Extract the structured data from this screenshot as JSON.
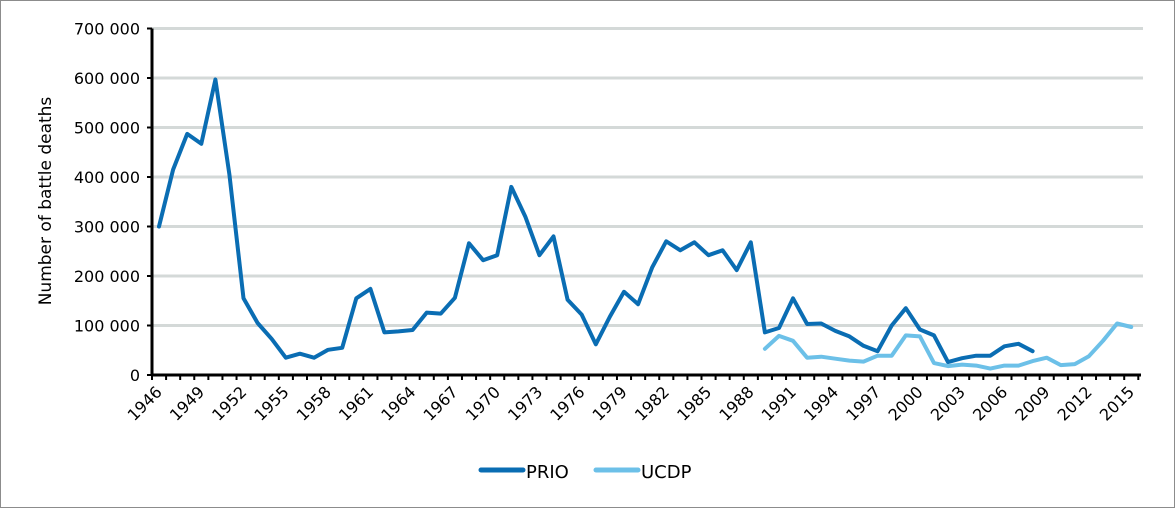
{
  "chart_data": {
    "type": "line",
    "title": "",
    "xlabel": "",
    "ylabel": "Number of battle deaths",
    "ylim": [
      0,
      700000
    ],
    "yticks": [
      "0",
      "100 000",
      "200 000",
      "300 000",
      "400 000",
      "500 000",
      "600 000",
      "700 000"
    ],
    "xticks": [
      "1946",
      "1949",
      "1952",
      "1955",
      "1958",
      "1961",
      "1964",
      "1967",
      "1970",
      "1973",
      "1976",
      "1979",
      "1982",
      "1985",
      "1988",
      "1991",
      "1994",
      "1997",
      "2000",
      "2003",
      "2006",
      "2009",
      "2012",
      "2015"
    ],
    "x_start": 1946,
    "x_end": 2015,
    "grid": "horizontal",
    "legend_position": "bottom",
    "series": [
      {
        "name": "PRIO",
        "color": "#0a6db3",
        "start_year": 1946,
        "values": [
          300000,
          415000,
          487000,
          467000,
          597000,
          405000,
          155000,
          105000,
          73000,
          35000,
          43000,
          35000,
          51000,
          55000,
          155000,
          174000,
          86000,
          88000,
          91000,
          126000,
          124000,
          156000,
          266000,
          232000,
          242000,
          380000,
          320000,
          242000,
          280000,
          152000,
          122000,
          62000,
          118000,
          168000,
          143000,
          217000,
          270000,
          252000,
          268000,
          242000,
          252000,
          212000,
          268000,
          86000,
          95000,
          155000,
          103000,
          104000,
          89000,
          78000,
          59000,
          48000,
          100000,
          135000,
          92000,
          80000,
          26000,
          34000,
          39000,
          39000,
          58000,
          63000,
          48000
        ]
      },
      {
        "name": "UCDP",
        "color": "#6cc0e8",
        "start_year": 1989,
        "values": [
          53000,
          79000,
          69000,
          35000,
          37000,
          33000,
          29000,
          27000,
          39000,
          39000,
          80000,
          78000,
          24000,
          18000,
          21000,
          19000,
          13000,
          19000,
          19000,
          28000,
          35000,
          20000,
          22000,
          38000,
          69000,
          104000,
          97000
        ]
      }
    ]
  },
  "legend": {
    "items": [
      {
        "label": "PRIO"
      },
      {
        "label": "UCDP"
      }
    ]
  }
}
